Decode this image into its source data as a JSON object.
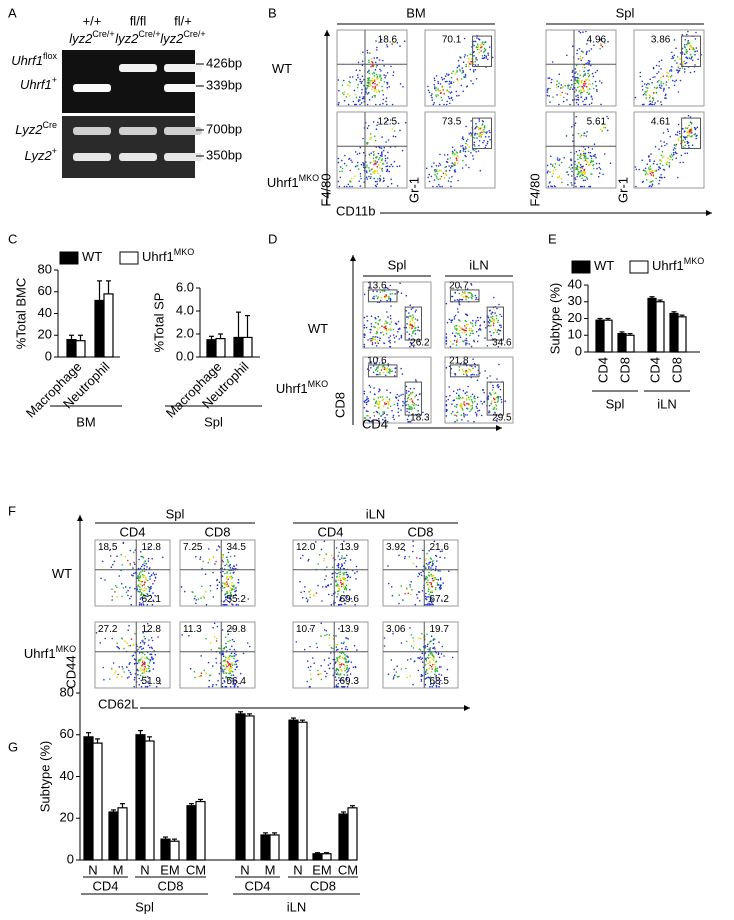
{
  "panel_labels": [
    "A",
    "B",
    "C",
    "D",
    "E",
    "F",
    "G"
  ],
  "genotypes": [
    {
      "base": "WT"
    },
    {
      "base": "Uhrf1",
      "sup": "MKO"
    }
  ],
  "gel": {
    "columns": [
      {
        "genotype": "+/+",
        "base": "lyz2",
        "sup": "Cre/+"
      },
      {
        "genotype": "fl/fl",
        "base": "lyz2",
        "sup": "Cre/+"
      },
      {
        "genotype": "fl/+",
        "base": "lyz2",
        "sup": "Cre/+"
      }
    ],
    "bands": [
      {
        "base": "Uhrf1",
        "sup": "flox",
        "size": "426bp"
      },
      {
        "base": "Uhrf1",
        "sup": "+",
        "size": "339bp"
      },
      {
        "base": "Lyz2",
        "sup": "Cre",
        "size": "700bp"
      },
      {
        "base": "Lyz2",
        "sup": "+",
        "size": "350bp"
      }
    ]
  },
  "flow_b": {
    "groups": [
      {
        "label": "BM",
        "gates": [
          [
            "18.6",
            "70.1"
          ],
          [
            "12.5",
            "73.5"
          ]
        ]
      },
      {
        "label": "Spl",
        "gates": [
          [
            "4.96",
            "3.86"
          ],
          [
            "5.61",
            "4.61"
          ]
        ]
      }
    ],
    "y_labels": [
      "F4/80",
      "Gr-1"
    ],
    "x_label": "CD11b"
  },
  "flow_d": {
    "groups": [
      {
        "label": "Spl",
        "gates": [
          [
            "13.6",
            "26.2"
          ],
          [
            "10.6",
            "18.3"
          ]
        ]
      },
      {
        "label": "iLN",
        "gates": [
          [
            "20.7",
            "34.6"
          ],
          [
            "21.8",
            "29.5"
          ]
        ]
      }
    ],
    "y_label": "CD8",
    "x_label": "CD4"
  },
  "flow_f": {
    "groups": [
      {
        "label": "Spl",
        "columns": [
          {
            "label": "CD4",
            "gates": [
              [
                "18.5",
                "12.8",
                "62.1"
              ],
              [
                "27.2",
                "12.8",
                "51.9"
              ]
            ]
          },
          {
            "label": "CD8",
            "gates": [
              [
                "7.25",
                "34.5",
                "55.2"
              ],
              [
                "11.3",
                "29.8",
                "56.4"
              ]
            ]
          }
        ]
      },
      {
        "label": "iLN",
        "columns": [
          {
            "label": "CD4",
            "gates": [
              [
                "12.0",
                "13.9",
                "69.6"
              ],
              [
                "10.7",
                "13.9",
                "69.3"
              ]
            ]
          },
          {
            "label": "CD8",
            "gates": [
              [
                "3.92",
                "21.6",
                "67.2"
              ],
              [
                "3.06",
                "19.7",
                "68.5"
              ]
            ]
          }
        ]
      }
    ],
    "y_label": "CD44",
    "x_label": "CD62L"
  },
  "chart_data": [
    {
      "type": "bar",
      "ylabel": "%Total BMC",
      "ylim": [
        0,
        80
      ],
      "yticks": [
        0,
        20,
        40,
        60,
        80
      ],
      "categories": [
        "Macrophage",
        "Neutrophil"
      ],
      "group": "BM",
      "series": [
        {
          "name": "WT",
          "color": "#000000",
          "values": [
            16,
            52
          ],
          "errors": [
            4,
            18
          ]
        },
        {
          "name": "Uhrf1",
          "sup": "MKO",
          "color": "#ffffff",
          "values": [
            15,
            58
          ],
          "errors": [
            5,
            12
          ]
        }
      ]
    },
    {
      "type": "bar",
      "ylabel": "%Total SP",
      "ylim": [
        0,
        6
      ],
      "yticks": [
        {
          "value": 0,
          "label": "0.0"
        },
        {
          "value": 2,
          "label": "2.0"
        },
        {
          "value": 4,
          "label": "4.0"
        },
        {
          "value": 6,
          "label": "6.0"
        }
      ],
      "categories": [
        "Macrophage",
        "Neutrophil"
      ],
      "group": "Spl",
      "series": [
        {
          "name": "WT",
          "color": "#000000",
          "values": [
            1.5,
            1.7
          ],
          "errors": [
            0.3,
            2.2
          ]
        },
        {
          "name": "Uhrf1",
          "sup": "MKO",
          "color": "#ffffff",
          "values": [
            1.6,
            1.7
          ],
          "errors": [
            0.4,
            1.9
          ]
        }
      ]
    },
    {
      "type": "bar",
      "ylabel": "Subtype (%)",
      "ylim": [
        0,
        40
      ],
      "yticks": [
        0,
        10,
        20,
        30,
        40
      ],
      "groups": [
        {
          "label": "Spl",
          "categories": [
            "CD4",
            "CD8"
          ]
        },
        {
          "label": "iLN",
          "categories": [
            "CD4",
            "CD8"
          ]
        }
      ],
      "series": [
        {
          "name": "WT",
          "color": "#000000",
          "values": [
            19,
            11,
            32,
            23
          ],
          "errors": [
            1,
            1,
            1,
            1
          ]
        },
        {
          "name": "Uhrf1",
          "sup": "MKO",
          "color": "#ffffff",
          "values": [
            19,
            10,
            30,
            21
          ],
          "errors": [
            1,
            1,
            1,
            1
          ]
        }
      ]
    },
    {
      "type": "bar",
      "ylabel": "Subtype (%)",
      "ylim": [
        0,
        80
      ],
      "yticks": [
        0,
        20,
        40,
        60,
        80
      ],
      "groups": [
        {
          "label": "Spl",
          "subgroups": [
            {
              "label": "CD4",
              "categories": [
                "N",
                "M"
              ]
            },
            {
              "label": "CD8",
              "categories": [
                "N",
                "EM",
                "CM"
              ]
            }
          ]
        },
        {
          "label": "iLN",
          "subgroups": [
            {
              "label": "CD4",
              "categories": [
                "N",
                "M"
              ]
            },
            {
              "label": "CD8",
              "categories": [
                "N",
                "EM",
                "CM"
              ]
            }
          ]
        }
      ],
      "series": [
        {
          "name": "WT",
          "color": "#000000",
          "values": [
            59,
            23,
            60,
            10,
            26,
            70,
            12,
            67,
            3,
            22
          ],
          "errors": [
            2,
            1,
            2,
            1,
            1,
            1,
            1,
            1,
            0.5,
            1
          ]
        },
        {
          "name": "Uhrf1",
          "sup": "MKO",
          "color": "#ffffff",
          "values": [
            56,
            25,
            57,
            9,
            28,
            69,
            12,
            66,
            3,
            25
          ],
          "errors": [
            2,
            2,
            2,
            1,
            1,
            1,
            1,
            1,
            0.5,
            1
          ]
        }
      ]
    }
  ]
}
